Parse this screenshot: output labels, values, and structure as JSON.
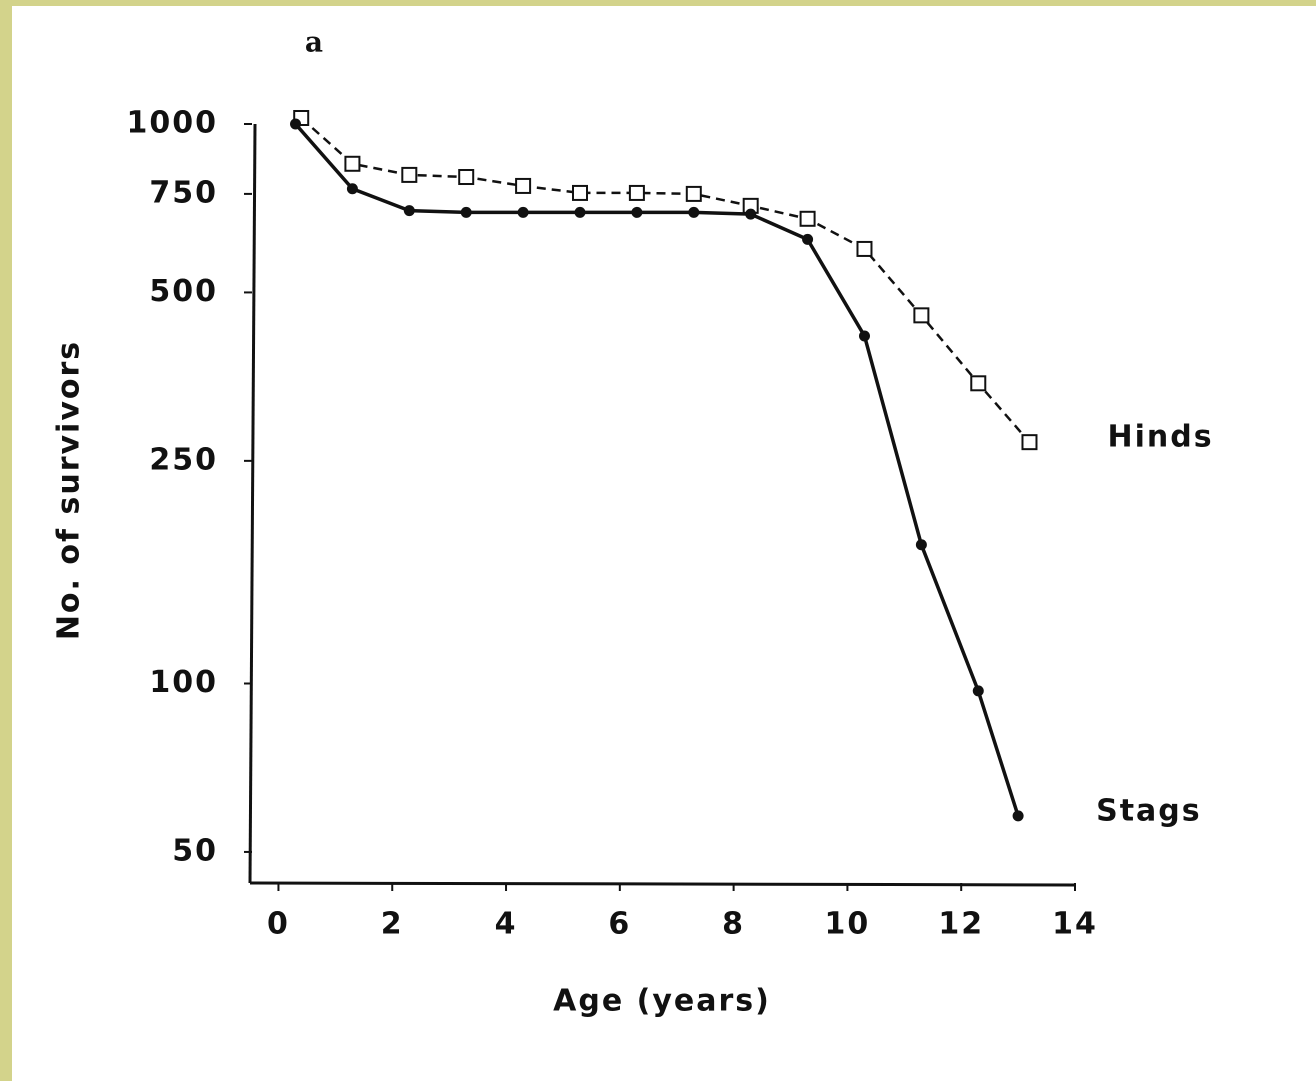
{
  "chart_data": {
    "type": "line",
    "panel_label": "a",
    "xlabel": "Age (years)",
    "ylabel": "No. of survivors",
    "xlim": [
      -0.5,
      14
    ],
    "xticks": [
      0,
      2,
      4,
      6,
      8,
      10,
      12,
      14
    ],
    "ylim": [
      44,
      1000
    ],
    "yticks": [
      50,
      100,
      250,
      500,
      750,
      1000
    ],
    "ylog": true,
    "grid": false,
    "series": [
      {
        "name": "Hinds",
        "color": "#111111",
        "marker": "square",
        "dash": true,
        "x": [
          0.4,
          1.3,
          2.3,
          3.3,
          4.3,
          5.3,
          6.3,
          7.3,
          8.3,
          9.3,
          10.3,
          11.3,
          12.3,
          13.2
        ],
        "values": [
          1025,
          849,
          811,
          804,
          775,
          753,
          753,
          750,
          714,
          677,
          598,
          455,
          344,
          270
        ]
      },
      {
        "name": "Stags",
        "color": "#111111",
        "marker": "circle",
        "dash": false,
        "x": [
          0.3,
          1.3,
          2.3,
          3.3,
          4.3,
          5.3,
          6.3,
          7.3,
          8.3,
          9.3,
          10.3,
          11.3,
          12.3,
          13.0
        ],
        "values": [
          1000,
          766,
          700,
          695,
          695,
          695,
          695,
          695,
          690,
          622,
          418,
          177,
          97,
          58
        ]
      }
    ]
  }
}
